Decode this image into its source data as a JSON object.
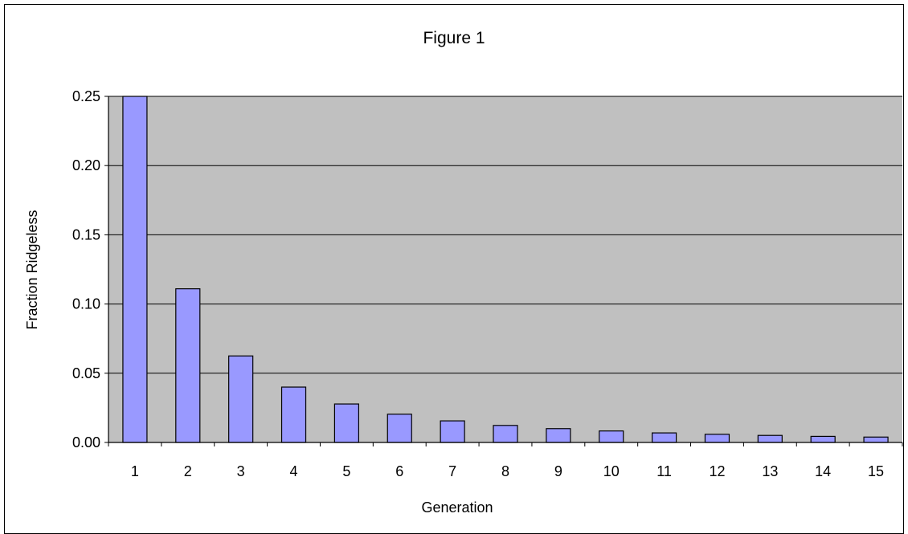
{
  "chart_data": {
    "type": "bar",
    "title": "Figure 1",
    "xlabel": "Generation",
    "ylabel": "Fraction Ridgeless",
    "categories": [
      "1",
      "2",
      "3",
      "4",
      "5",
      "6",
      "7",
      "8",
      "9",
      "10",
      "11",
      "12",
      "13",
      "14",
      "15"
    ],
    "values": [
      0.25,
      0.111,
      0.0625,
      0.04,
      0.0278,
      0.0204,
      0.0156,
      0.0123,
      0.01,
      0.0083,
      0.0069,
      0.0059,
      0.0051,
      0.0044,
      0.0039
    ],
    "ylim": [
      0,
      0.25
    ],
    "yticks": [
      "0.00",
      "0.05",
      "0.10",
      "0.15",
      "0.20",
      "0.25"
    ],
    "grid": "horizontal",
    "legend": "none",
    "colors": {
      "bar_fill": "#9999ff",
      "bar_stroke": "#000000",
      "plot_background": "#c0c0c0",
      "gridline": "#000000"
    }
  }
}
